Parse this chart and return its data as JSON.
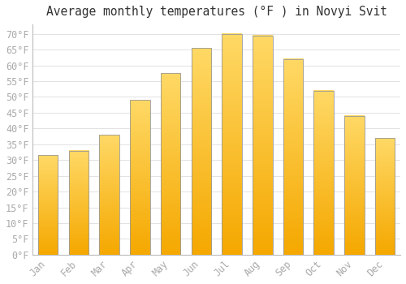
{
  "title": "Average monthly temperatures (°F ) in Novyi Svit",
  "months": [
    "Jan",
    "Feb",
    "Mar",
    "Apr",
    "May",
    "Jun",
    "Jul",
    "Aug",
    "Sep",
    "Oct",
    "Nov",
    "Dec"
  ],
  "values": [
    31.5,
    33.0,
    38.0,
    49.0,
    57.5,
    65.5,
    70.0,
    69.5,
    62.0,
    52.0,
    44.0,
    37.0
  ],
  "bar_color_bottom": "#F5A800",
  "bar_color_top": "#FFD966",
  "bar_edge_color": "#999999",
  "background_color": "#FFFFFF",
  "plot_bg_color": "#FFFFFF",
  "grid_color": "#DDDDDD",
  "ylim": [
    0,
    73
  ],
  "yticks": [
    0,
    5,
    10,
    15,
    20,
    25,
    30,
    35,
    40,
    45,
    50,
    55,
    60,
    65,
    70
  ],
  "ylabel_suffix": "°F",
  "title_fontsize": 10.5,
  "tick_fontsize": 8.5,
  "font_color": "#AAAAAA",
  "title_color": "#333333"
}
